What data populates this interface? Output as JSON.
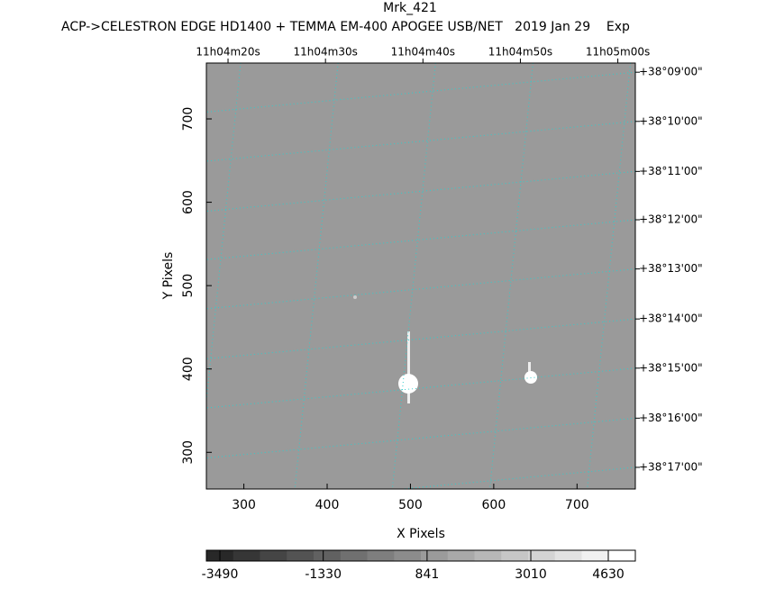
{
  "chart_data": {
    "type": "image",
    "title": "Mrk_421",
    "subtitle": "ACP->CELESTRON EDGE HD1400 + TEMMA EM-400 APOGEE USB/NET   2019 Jan 29    Exp",
    "xlabel": "X Pixels",
    "ylabel": "Y Pixels",
    "xlim": [
      255,
      770
    ],
    "ylim": [
      256,
      767
    ],
    "xticks": [
      300,
      400,
      500,
      600,
      700
    ],
    "yticks": [
      300,
      400,
      500,
      600,
      700
    ],
    "ra_ticks": [
      {
        "value": 281,
        "label": "11h04m20s"
      },
      {
        "value": 398,
        "label": "11h04m30s"
      },
      {
        "value": 515,
        "label": "11h04m40s"
      },
      {
        "value": 632,
        "label": "11h04m50s"
      },
      {
        "value": 749,
        "label": "11h05m00s"
      }
    ],
    "dec_ticks": [
      {
        "value": 756,
        "label": "+38°09'00\""
      },
      {
        "value": 697,
        "label": "+38°10'00\""
      },
      {
        "value": 637,
        "label": "+38°11'00\""
      },
      {
        "value": 579,
        "label": "+38°12'00\""
      },
      {
        "value": 520,
        "label": "+38°13'00\""
      },
      {
        "value": 460,
        "label": "+38°14'00\""
      },
      {
        "value": 401,
        "label": "+38°15'00\""
      },
      {
        "value": 341,
        "label": "+38°16'00\""
      },
      {
        "value": 282,
        "label": "+38°17'00\""
      }
    ],
    "colorbar": {
      "lim": [
        -3773,
        5195
      ],
      "ticks": [
        -3490,
        -1330,
        841,
        3010,
        4630
      ]
    }
  }
}
